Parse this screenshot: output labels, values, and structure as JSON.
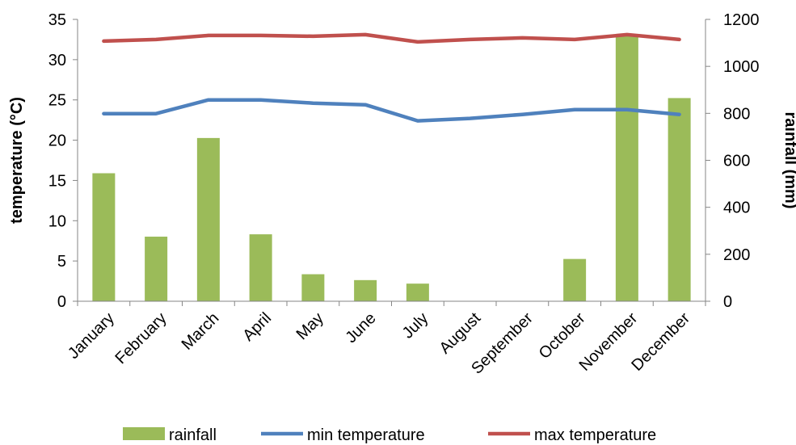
{
  "chart_data": {
    "type": "bar",
    "categories": [
      "January",
      "February",
      "March",
      "April",
      "May",
      "June",
      "July",
      "August",
      "September",
      "October",
      "November",
      "December"
    ],
    "series": [
      {
        "name": "rainfall",
        "type": "bar",
        "axis": "right",
        "color": "#9bbb59",
        "values": [
          545,
          275,
          695,
          285,
          115,
          90,
          75,
          0,
          0,
          180,
          1135,
          865
        ]
      },
      {
        "name": "min temperature",
        "type": "line",
        "axis": "left",
        "color": "#4f81bd",
        "values": [
          23.3,
          23.3,
          25.0,
          25.0,
          24.6,
          24.4,
          22.4,
          22.7,
          23.2,
          23.8,
          23.8,
          23.2
        ]
      },
      {
        "name": "max temperature",
        "type": "line",
        "axis": "left",
        "color": "#c0504d",
        "values": [
          32.3,
          32.5,
          33.0,
          33.0,
          32.9,
          33.1,
          32.2,
          32.5,
          32.7,
          32.5,
          33.1,
          32.5
        ]
      }
    ],
    "ylabel": "temperature (°C)",
    "ylim": [
      0,
      35
    ],
    "yticks": [
      0,
      5,
      10,
      15,
      20,
      25,
      30,
      35
    ],
    "y2label": "rainfall (mm)",
    "y2lim": [
      0,
      1200
    ],
    "y2ticks": [
      0,
      200,
      400,
      600,
      800,
      1000,
      1200
    ],
    "legend_position": "bottom",
    "grid": false
  }
}
